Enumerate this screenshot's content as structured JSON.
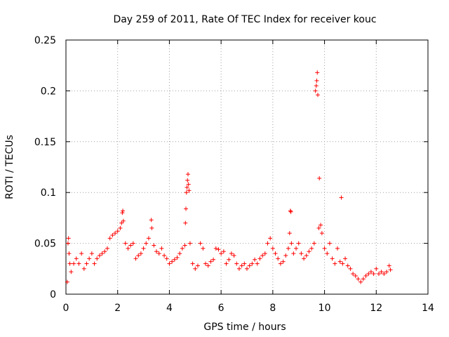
{
  "chart_data": {
    "type": "scatter",
    "title": "Day 259 of 2011, Rate Of TEC Index for receiver kouc",
    "xlabel": "GPS time / hours",
    "ylabel": "ROTI / TECUs",
    "xlim": [
      0,
      14
    ],
    "ylim": [
      0,
      0.25
    ],
    "x_ticks": [
      "0",
      "2",
      "4",
      "6",
      "8",
      "10",
      "12",
      "14"
    ],
    "y_ticks": [
      "0",
      "0.05",
      "0.1",
      "0.15",
      "0.2",
      "0.25"
    ],
    "grid": true,
    "marker": "+",
    "color": "#ff0000",
    "series": [
      {
        "name": "ROTI",
        "points": [
          [
            0.05,
            0.012
          ],
          [
            0.08,
            0.05
          ],
          [
            0.1,
            0.055
          ],
          [
            0.12,
            0.04
          ],
          [
            0.15,
            0.03
          ],
          [
            0.2,
            0.022
          ],
          [
            0.3,
            0.03
          ],
          [
            0.4,
            0.035
          ],
          [
            0.5,
            0.03
          ],
          [
            0.6,
            0.04
          ],
          [
            0.7,
            0.025
          ],
          [
            0.8,
            0.03
          ],
          [
            0.9,
            0.035
          ],
          [
            1.0,
            0.04
          ],
          [
            1.1,
            0.03
          ],
          [
            1.2,
            0.035
          ],
          [
            1.3,
            0.038
          ],
          [
            1.4,
            0.04
          ],
          [
            1.5,
            0.042
          ],
          [
            1.6,
            0.045
          ],
          [
            1.7,
            0.055
          ],
          [
            1.8,
            0.058
          ],
          [
            1.9,
            0.06
          ],
          [
            2.0,
            0.062
          ],
          [
            2.1,
            0.065
          ],
          [
            2.15,
            0.07
          ],
          [
            2.18,
            0.08
          ],
          [
            2.2,
            0.082
          ],
          [
            2.22,
            0.072
          ],
          [
            2.3,
            0.05
          ],
          [
            2.4,
            0.045
          ],
          [
            2.5,
            0.048
          ],
          [
            2.6,
            0.05
          ],
          [
            2.7,
            0.035
          ],
          [
            2.8,
            0.038
          ],
          [
            2.9,
            0.04
          ],
          [
            3.0,
            0.045
          ],
          [
            3.1,
            0.05
          ],
          [
            3.2,
            0.055
          ],
          [
            3.3,
            0.073
          ],
          [
            3.32,
            0.065
          ],
          [
            3.4,
            0.048
          ],
          [
            3.5,
            0.042
          ],
          [
            3.6,
            0.04
          ],
          [
            3.7,
            0.045
          ],
          [
            3.8,
            0.038
          ],
          [
            3.9,
            0.035
          ],
          [
            4.0,
            0.03
          ],
          [
            4.1,
            0.032
          ],
          [
            4.2,
            0.034
          ],
          [
            4.3,
            0.036
          ],
          [
            4.4,
            0.04
          ],
          [
            4.5,
            0.045
          ],
          [
            4.6,
            0.048
          ],
          [
            4.62,
            0.07
          ],
          [
            4.64,
            0.084
          ],
          [
            4.66,
            0.1
          ],
          [
            4.68,
            0.105
          ],
          [
            4.7,
            0.112
          ],
          [
            4.72,
            0.118
          ],
          [
            4.74,
            0.108
          ],
          [
            4.76,
            0.102
          ],
          [
            4.8,
            0.05
          ],
          [
            4.9,
            0.03
          ],
          [
            5.0,
            0.025
          ],
          [
            5.1,
            0.028
          ],
          [
            5.2,
            0.05
          ],
          [
            5.3,
            0.045
          ],
          [
            5.4,
            0.03
          ],
          [
            5.5,
            0.028
          ],
          [
            5.6,
            0.032
          ],
          [
            5.7,
            0.034
          ],
          [
            5.8,
            0.045
          ],
          [
            5.9,
            0.044
          ],
          [
            6.0,
            0.04
          ],
          [
            6.1,
            0.042
          ],
          [
            6.2,
            0.03
          ],
          [
            6.3,
            0.034
          ],
          [
            6.4,
            0.04
          ],
          [
            6.5,
            0.038
          ],
          [
            6.6,
            0.03
          ],
          [
            6.7,
            0.025
          ],
          [
            6.8,
            0.028
          ],
          [
            6.9,
            0.03
          ],
          [
            7.0,
            0.025
          ],
          [
            7.1,
            0.028
          ],
          [
            7.2,
            0.03
          ],
          [
            7.3,
            0.034
          ],
          [
            7.4,
            0.03
          ],
          [
            7.5,
            0.035
          ],
          [
            7.6,
            0.038
          ],
          [
            7.7,
            0.04
          ],
          [
            7.8,
            0.05
          ],
          [
            7.9,
            0.055
          ],
          [
            8.0,
            0.045
          ],
          [
            8.1,
            0.04
          ],
          [
            8.2,
            0.035
          ],
          [
            8.3,
            0.03
          ],
          [
            8.4,
            0.032
          ],
          [
            8.5,
            0.038
          ],
          [
            8.6,
            0.045
          ],
          [
            8.65,
            0.06
          ],
          [
            8.68,
            0.082
          ],
          [
            8.7,
            0.081
          ],
          [
            8.72,
            0.05
          ],
          [
            8.8,
            0.04
          ],
          [
            8.9,
            0.045
          ],
          [
            9.0,
            0.05
          ],
          [
            9.1,
            0.04
          ],
          [
            9.2,
            0.035
          ],
          [
            9.3,
            0.038
          ],
          [
            9.4,
            0.042
          ],
          [
            9.5,
            0.045
          ],
          [
            9.6,
            0.05
          ],
          [
            9.65,
            0.2
          ],
          [
            9.68,
            0.205
          ],
          [
            9.7,
            0.21
          ],
          [
            9.72,
            0.218
          ],
          [
            9.74,
            0.196
          ],
          [
            9.78,
            0.065
          ],
          [
            9.8,
            0.114
          ],
          [
            9.85,
            0.068
          ],
          [
            9.9,
            0.06
          ],
          [
            10.0,
            0.045
          ],
          [
            10.1,
            0.04
          ],
          [
            10.2,
            0.05
          ],
          [
            10.3,
            0.035
          ],
          [
            10.4,
            0.03
          ],
          [
            10.5,
            0.045
          ],
          [
            10.6,
            0.032
          ],
          [
            10.65,
            0.095
          ],
          [
            10.7,
            0.03
          ],
          [
            10.8,
            0.035
          ],
          [
            10.9,
            0.028
          ],
          [
            11.0,
            0.025
          ],
          [
            11.1,
            0.02
          ],
          [
            11.2,
            0.018
          ],
          [
            11.3,
            0.015
          ],
          [
            11.4,
            0.012
          ],
          [
            11.5,
            0.015
          ],
          [
            11.6,
            0.018
          ],
          [
            11.7,
            0.02
          ],
          [
            11.8,
            0.022
          ],
          [
            11.9,
            0.02
          ],
          [
            12.0,
            0.025
          ],
          [
            12.1,
            0.02
          ],
          [
            12.2,
            0.022
          ],
          [
            12.3,
            0.02
          ],
          [
            12.4,
            0.022
          ],
          [
            12.5,
            0.028
          ],
          [
            12.55,
            0.024
          ]
        ]
      }
    ]
  }
}
